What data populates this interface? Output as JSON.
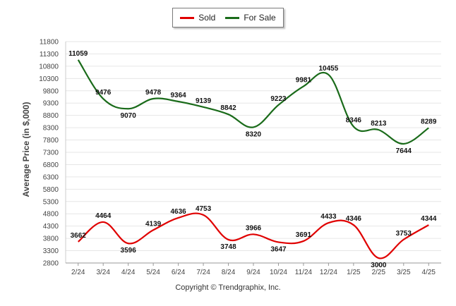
{
  "chart_data": {
    "type": "line",
    "ylabel": "Average Price (in $,000)",
    "xlabel": "",
    "categories": [
      "2/24",
      "3/24",
      "4/24",
      "5/24",
      "6/24",
      "7/24",
      "8/24",
      "9/24",
      "10/24",
      "11/24",
      "12/24",
      "1/25",
      "2/25",
      "3/25",
      "4/25"
    ],
    "yticks": [
      2800,
      3300,
      3800,
      4300,
      4800,
      5300,
      5800,
      6300,
      6800,
      7300,
      7800,
      8300,
      8800,
      9300,
      9800,
      10300,
      10800,
      11300,
      11800
    ],
    "ylim": [
      2800,
      11800
    ],
    "grid": true,
    "legend_position": "top-center",
    "series": [
      {
        "name": "Sold",
        "color": "#e00000",
        "values": [
          3662,
          4464,
          3596,
          4139,
          4636,
          4753,
          3748,
          3966,
          3647,
          3691,
          4433,
          4346,
          3000,
          3753,
          4344
        ]
      },
      {
        "name": "For Sale",
        "color": "#1a6b1a",
        "values": [
          11059,
          9476,
          9070,
          9478,
          9364,
          9139,
          8842,
          8320,
          9223,
          9981,
          10455,
          8346,
          8213,
          7644,
          8289
        ]
      }
    ]
  },
  "legend": {
    "sold_label": "Sold",
    "forsale_label": "For Sale"
  },
  "footer": {
    "copyright": "Copyright © Trendgraphix, Inc."
  }
}
